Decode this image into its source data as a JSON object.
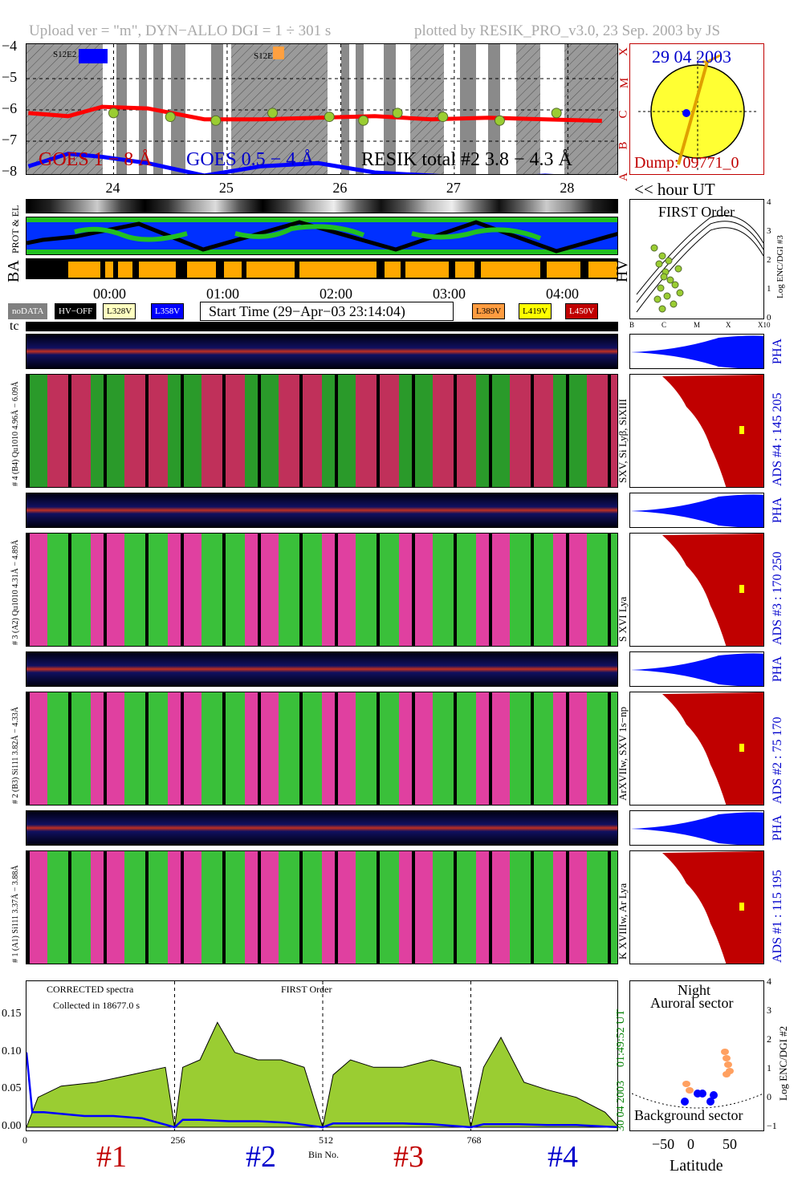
{
  "header": {
    "upload_info": "Upload ver = \"m\", DYN−ALLO DGI =   1 ÷ 301 s",
    "plotted_by": "plotted by RESIK_PRO_v3.0, 23 Sep. 2003 by JS"
  },
  "goes_panel": {
    "y_ticks": [
      "−4",
      "−5",
      "−6",
      "−7",
      "−8"
    ],
    "class_letters": [
      "X",
      "M",
      "C",
      "B",
      "A"
    ],
    "x_ticks": [
      "24",
      "25",
      "26",
      "27",
      "28"
    ],
    "hour_label": "<< hour UT",
    "legend_goes_long": "GOES 1 − 8 Å",
    "legend_goes_short": "GOES 0.5 − 4 Å",
    "legend_resik": "RESIK total #2  3.8 − 4.3 Å",
    "saa_labels": [
      "S12E2",
      "S12E16"
    ],
    "colors": {
      "goes_long": "#ff0000",
      "goes_short": "#0000ff",
      "resik": "#9acd32"
    },
    "chart_data": {
      "type": "line",
      "xlabel": "hour UT",
      "ylabel": "",
      "x_ticks": [
        24,
        25,
        26,
        27,
        28
      ],
      "ylim": [
        -8,
        -4
      ],
      "series": [
        {
          "name": "GOES 1 − 8 Å",
          "x": [
            23.25,
            23.6,
            23.9,
            24.3,
            24.8,
            25.3,
            25.8,
            26.3,
            26.8,
            27.3,
            27.8,
            28.3
          ],
          "values": [
            -6.1,
            -6.2,
            -5.9,
            -5.95,
            -6.3,
            -6.3,
            -6.25,
            -6.2,
            -6.3,
            -6.25,
            -6.3,
            -6.35
          ]
        },
        {
          "name": "GOES 0.5 − 4 Å",
          "x": [
            23.25,
            23.6,
            23.9,
            24.3,
            24.8,
            25.3,
            25.8,
            26.3,
            26.8,
            27.3,
            27.8,
            28.3
          ],
          "values": [
            -7.8,
            -7.4,
            -7.5,
            -7.7,
            -8.1,
            -7.8,
            -7.7,
            -8.0,
            -8.1,
            -8.2,
            -8.1,
            -8.2
          ]
        }
      ]
    }
  },
  "sun_disk": {
    "date": "29 04 2003",
    "dump": "Dump: 09771_0"
  },
  "strip_labels": {
    "prot_el": "PROT & EL",
    "ba": "BA",
    "hv": "HV"
  },
  "time_axis": [
    "00:00",
    "01:00",
    "02:00",
    "03:00",
    "04:00"
  ],
  "legend_row": {
    "nodata": "noDATA",
    "hvoff": "HV−OFF",
    "l328": "L328V",
    "l358": "L358V",
    "start_time": "Start Time (29−Apr−03 23:14:04)",
    "l389": "L389V",
    "l419": "L419V",
    "l450": "L450V"
  },
  "tc_label": "tc",
  "first_order_panel": {
    "title": "FIRST Order",
    "y_label": "Log ENC/DGI #3",
    "y_ticks": [
      "4",
      "3",
      "2",
      "1",
      "0"
    ],
    "x_ticks": [
      "B",
      "C",
      "M",
      "X",
      "X10"
    ]
  },
  "channels": [
    {
      "id": "4",
      "left_label": "# 4 (B4) Qu1010 4.96Å − 6.09Å",
      "right_label": "SXV, Si Lyβ, SiXIII",
      "ads": "ADS #4 :   145 205",
      "pha": "PHA"
    },
    {
      "id": "3",
      "left_label": "# 3 (A2) Qu1010 4.31Å − 4.89Å",
      "right_label": "S XVI Lya",
      "ads": "ADS #3 :   170 250",
      "pha": "PHA"
    },
    {
      "id": "2",
      "left_label": "# 2 (B3) Si111 3.82Å − 4.33Å",
      "right_label": "ArXVIIw, SXV 1s−np",
      "ads": "ADS #2 :   75 170",
      "pha": "PHA"
    },
    {
      "id": "1",
      "left_label": "# 1 (A1) Si111 3.37Å − 3.88Å",
      "right_label": "K XVIIIw, Ar Lya",
      "ads": "ADS #1 :   115 195",
      "pha": "PHA"
    }
  ],
  "spectrum_panel": {
    "text1": "CORRECTED spectra",
    "text2": "Collected in 18677.0 s",
    "text3": "FIRST Order",
    "y_ticks": [
      "0.15",
      "0.10",
      "0.05",
      "0.00"
    ],
    "x_ticks": [
      "0",
      "256",
      "512",
      "768"
    ],
    "x_label": "Bin No.",
    "side_time": "01:49:52 UT",
    "side_date": "30 04 2003",
    "channel_marks": [
      "#1",
      "#2",
      "#3",
      "#4"
    ],
    "chart_data": {
      "type": "area",
      "xlabel": "Bin No.",
      "x_ticks": [
        0,
        256,
        512,
        768
      ],
      "ylim": [
        0,
        0.18
      ],
      "series": [
        {
          "x": [
            0,
            20,
            60,
            120,
            180,
            240,
            256,
            270,
            300,
            330,
            360,
            400,
            440,
            480,
            512,
            530,
            560,
            600,
            650,
            700,
            750,
            768,
            790,
            820,
            860,
            900,
            950,
            1000,
            1024
          ],
          "values": [
            0.0,
            0.04,
            0.055,
            0.06,
            0.07,
            0.08,
            0.0,
            0.08,
            0.09,
            0.14,
            0.1,
            0.09,
            0.09,
            0.08,
            0.0,
            0.07,
            0.09,
            0.08,
            0.08,
            0.09,
            0.08,
            0.0,
            0.08,
            0.12,
            0.06,
            0.05,
            0.04,
            0.02,
            0.0
          ]
        },
        {
          "x": [
            0,
            10,
            30,
            100,
            150,
            200,
            256,
            270,
            300,
            350,
            400,
            450,
            512,
            530,
            600,
            650,
            700,
            768,
            790,
            850,
            900,
            950,
            1024
          ],
          "values": [
            0.1,
            0.02,
            0.02,
            0.015,
            0.015,
            0.012,
            0.0,
            0.01,
            0.01,
            0.008,
            0.008,
            0.006,
            0.0,
            0.005,
            0.005,
            0.005,
            0.004,
            0.0,
            0.004,
            0.004,
            0.003,
            0.003,
            0.0
          ]
        }
      ]
    }
  },
  "latitude_panel": {
    "title1": "Night",
    "title2": "Auroral sector",
    "bottom_text": "Background sector",
    "y_label": "Log ENC/DGI #2",
    "y_ticks": [
      "4",
      "3",
      "2",
      "1",
      "0",
      "−1"
    ],
    "x_ticks": [
      "−50",
      "0",
      "50"
    ],
    "x_label": "Latitude"
  }
}
